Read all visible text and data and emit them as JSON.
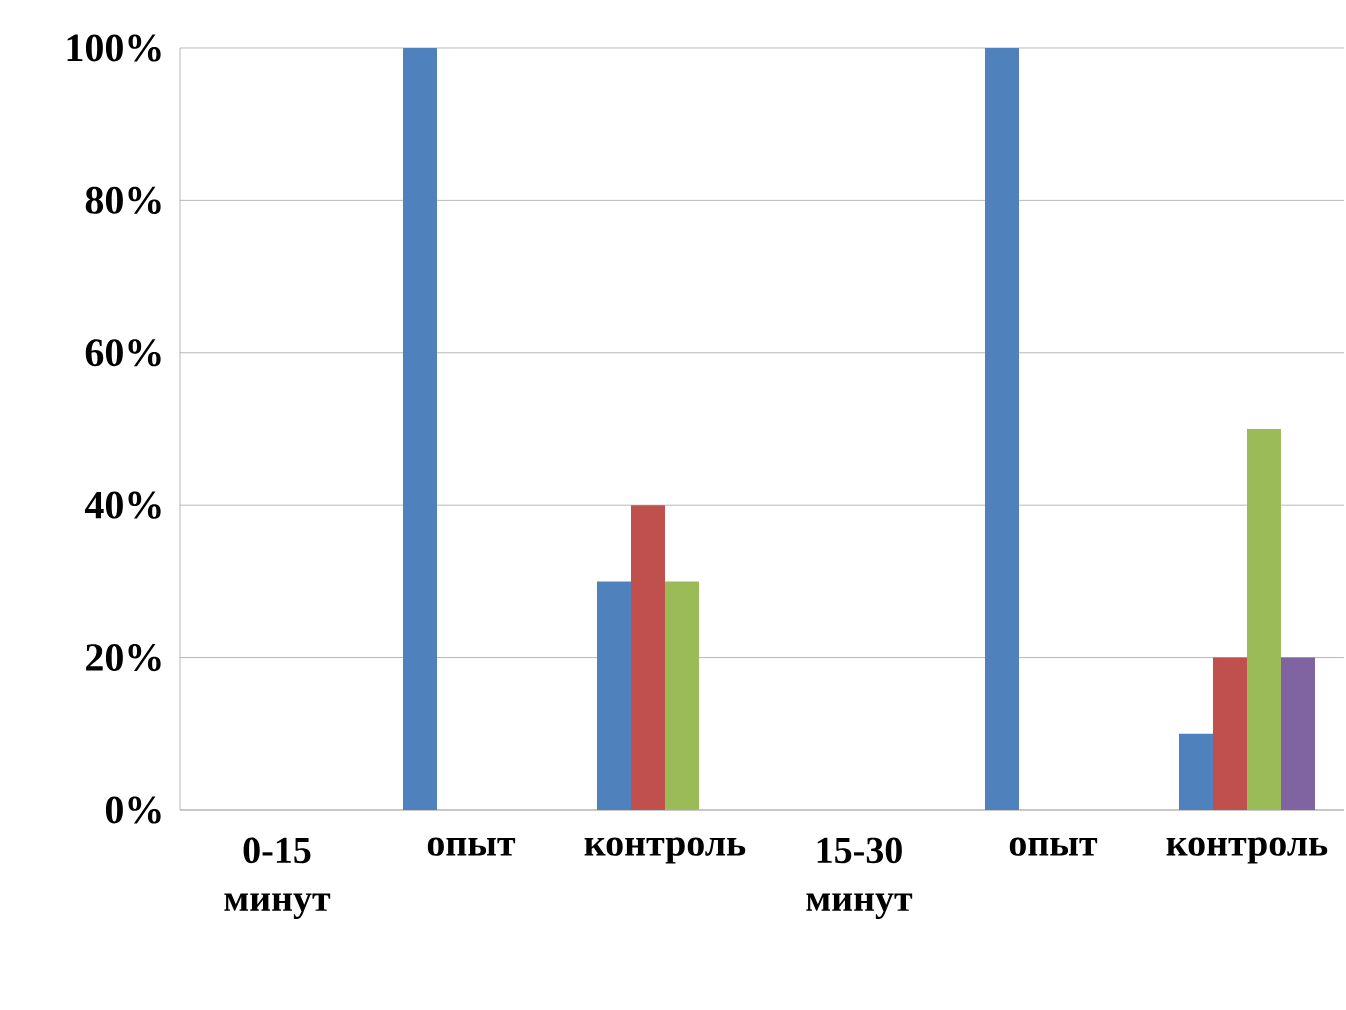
{
  "chart_data": {
    "type": "bar",
    "categories": [
      "0-15 минут",
      "опыт",
      "контроль",
      "15-30 минут",
      "опыт",
      "контроль"
    ],
    "series": [
      {
        "color": "#4f81bd",
        "values": [
          null,
          100,
          30,
          null,
          100,
          10
        ]
      },
      {
        "color": "#c0504d",
        "values": [
          null,
          null,
          40,
          null,
          null,
          20
        ]
      },
      {
        "color": "#9bbb59",
        "values": [
          null,
          null,
          30,
          null,
          null,
          50
        ]
      },
      {
        "color": "#8064a2",
        "values": [
          null,
          null,
          null,
          null,
          null,
          20
        ]
      }
    ],
    "ylim": [
      0,
      100
    ],
    "yticks": [
      {
        "value": 0,
        "label": "0%"
      },
      {
        "value": 20,
        "label": "20%"
      },
      {
        "value": 40,
        "label": "40%"
      },
      {
        "value": 60,
        "label": "60%"
      },
      {
        "value": 80,
        "label": "80%"
      },
      {
        "value": 100,
        "label": "100%"
      }
    ],
    "grid": "y"
  }
}
